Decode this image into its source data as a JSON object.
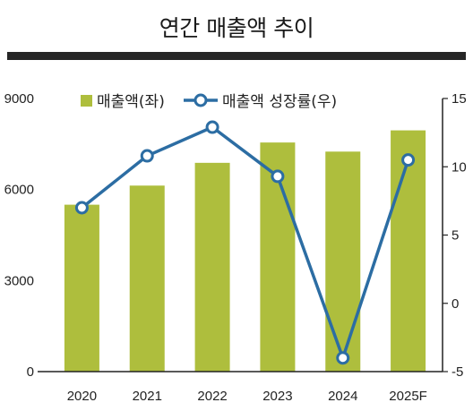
{
  "title": "연간 매출액 추이",
  "colors": {
    "bar": "#aebe3d",
    "line": "#2c6da3",
    "axis": "#222222",
    "rule": "#262626"
  },
  "chart_data": {
    "type": "bar",
    "title": "연간 매출액 추이",
    "categories": [
      "2020",
      "2021",
      "2022",
      "2023",
      "2024",
      "2025F"
    ],
    "series": [
      {
        "name": "매출액(좌)",
        "type": "bar",
        "axis": "left",
        "values": [
          5500,
          6130,
          6880,
          7550,
          7250,
          7950
        ]
      },
      {
        "name": "매출액 성장률(우)",
        "type": "line",
        "axis": "right",
        "values": [
          7.0,
          10.8,
          12.9,
          9.3,
          -4.0,
          10.5
        ]
      }
    ],
    "y_left": {
      "ticks": [
        "9000",
        "6000",
        "3000",
        "0"
      ],
      "range": [
        0,
        9000
      ]
    },
    "y_right": {
      "ticks": [
        "15",
        "10",
        "5",
        "0",
        "-5"
      ],
      "range": [
        -5,
        15
      ]
    },
    "legend": {
      "position": "top",
      "entries": [
        "매출액(좌)",
        "매출액 성장률(우)"
      ]
    },
    "grid": false
  }
}
